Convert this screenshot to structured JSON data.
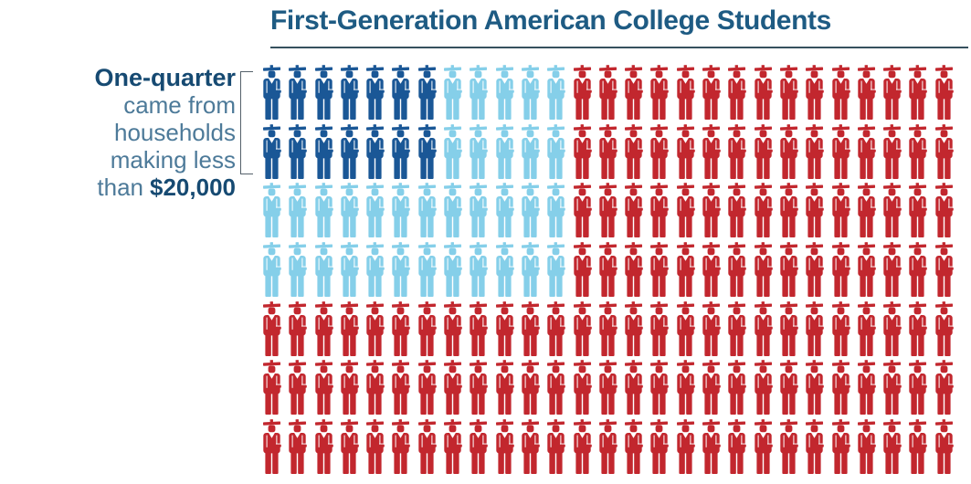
{
  "title": "First-Generation American College Students",
  "annotation": {
    "line1_bold": "One-quarter",
    "line2": "came from",
    "line3": "households",
    "line4": "making less",
    "line5_regular": "than",
    "line5_bold": "$20,000"
  },
  "colors": {
    "title": "#1e5b83",
    "text_dark": "#164a72",
    "text_light": "#4d7a99",
    "rule": "#36505e",
    "bracket": "#55616b",
    "background": "#ffffff"
  },
  "chart_data": {
    "type": "pictogram",
    "title": "First-Generation American College Students",
    "unit_icon": "graduate-person",
    "icons_per_row": 27,
    "num_rows": 7,
    "rows": [
      {
        "segments": [
          {
            "color_key": "dark_blue",
            "count": 7
          },
          {
            "color_key": "light_blue",
            "count": 5
          },
          {
            "color_key": "red",
            "count": 15
          }
        ]
      },
      {
        "segments": [
          {
            "color_key": "dark_blue",
            "count": 7
          },
          {
            "color_key": "light_blue",
            "count": 5
          },
          {
            "color_key": "red",
            "count": 15
          }
        ]
      },
      {
        "segments": [
          {
            "color_key": "light_blue",
            "count": 12
          },
          {
            "color_key": "red",
            "count": 15
          }
        ]
      },
      {
        "segments": [
          {
            "color_key": "light_blue",
            "count": 12
          },
          {
            "color_key": "red",
            "count": 15
          }
        ]
      },
      {
        "segments": [
          {
            "color_key": "red",
            "count": 27
          }
        ]
      },
      {
        "segments": [
          {
            "color_key": "red",
            "count": 27
          }
        ]
      },
      {
        "segments": [
          {
            "color_key": "red",
            "count": 27
          }
        ]
      }
    ],
    "totals": {
      "dark_blue": 14,
      "light_blue": 34,
      "red": 141,
      "all": 189
    },
    "colors": {
      "dark_blue": "#1a5796",
      "light_blue": "#85cfe9",
      "red": "#c2272e"
    },
    "annotation_text": "One-quarter came from households making less than $20,000",
    "bracket_spans_rows": [
      1,
      2
    ],
    "legend": "none"
  }
}
